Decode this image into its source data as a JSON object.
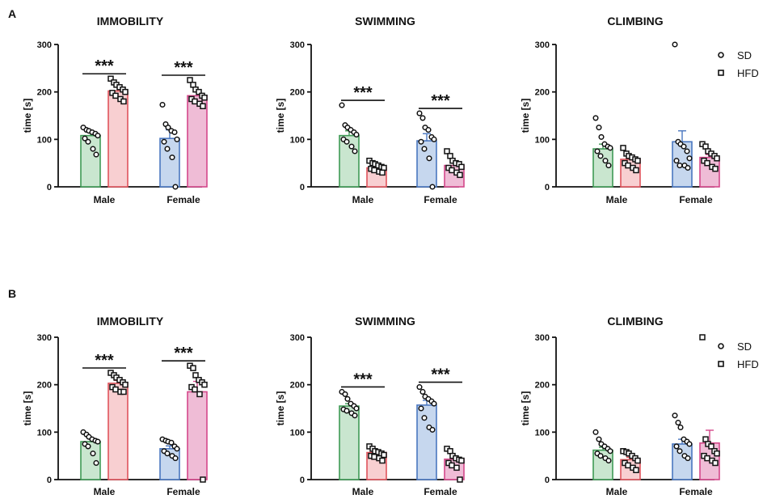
{
  "panels": [
    {
      "label": "A",
      "charts": [
        {
          "type": "bar",
          "title": "IMMOBILITY",
          "ylabel": "time [s]",
          "ylim": [
            0,
            300
          ],
          "yticks": [
            "0",
            "100",
            "200",
            "300"
          ],
          "categories": [
            "Male",
            "Female"
          ],
          "series": [
            {
              "name": "SD",
              "means": [
                108,
                102
              ],
              "errors": [
                8,
                18
              ],
              "points": [
                [
                  125,
                  120,
                  118,
                  115,
                  112,
                  108,
                  102,
                  95,
                  80,
                  68
                ],
                [
                  173,
                  132,
                  125,
                  118,
                  115,
                  100,
                  95,
                  80,
                  62,
                  0
                ]
              ]
            },
            {
              "name": "HFD",
              "means": [
                202,
                192
              ],
              "errors": [
                8,
                10
              ],
              "points": [
                [
                  228,
                  220,
                  215,
                  210,
                  205,
                  200,
                  198,
                  192,
                  185,
                  180
                ],
                [
                  225,
                  215,
                  205,
                  200,
                  192,
                  188,
                  185,
                  180,
                  175,
                  170
                ]
              ]
            }
          ],
          "significance": [
            "***",
            "***"
          ]
        },
        {
          "type": "bar",
          "title": "SWIMMING",
          "ylabel": "time [s]",
          "ylim": [
            0,
            300
          ],
          "yticks": [
            "0",
            "100",
            "200",
            "300"
          ],
          "categories": [
            "Male",
            "Female"
          ],
          "series": [
            {
              "name": "SD",
              "means": [
                108,
                97
              ],
              "errors": [
                10,
                15
              ],
              "points": [
                [
                  172,
                  130,
                  125,
                  120,
                  115,
                  110,
                  100,
                  95,
                  85,
                  75
                ],
                [
                  155,
                  145,
                  125,
                  120,
                  105,
                  100,
                  95,
                  80,
                  60,
                  0
                ]
              ]
            },
            {
              "name": "HFD",
              "means": [
                40,
                45
              ],
              "errors": [
                5,
                6
              ],
              "points": [
                [
                  55,
                  50,
                  48,
                  45,
                  42,
                  40,
                  38,
                  35,
                  32,
                  30
                ],
                [
                  75,
                  65,
                  55,
                  50,
                  48,
                  42,
                  40,
                  35,
                  30,
                  25
                ]
              ]
            }
          ],
          "significance": [
            "***",
            "***"
          ]
        },
        {
          "type": "bar",
          "title": "CLIMBING",
          "ylabel": "time [s]",
          "ylim": [
            0,
            300
          ],
          "yticks": [
            "0",
            "100",
            "200",
            "300"
          ],
          "categories": [
            "Male",
            "Female"
          ],
          "series": [
            {
              "name": "SD",
              "means": [
                80,
                95
              ],
              "errors": [
                10,
                23
              ],
              "points": [
                [
                  145,
                  125,
                  105,
                  90,
                  85,
                  82,
                  75,
                  65,
                  55,
                  45
                ],
                [
                  300,
                  95,
                  90,
                  85,
                  75,
                  60,
                  55,
                  45,
                  45,
                  40
                ]
              ]
            },
            {
              "name": "HFD",
              "means": [
                58,
                62
              ],
              "errors": [
                6,
                6
              ],
              "points": [
                [
                  82,
                  70,
                  65,
                  62,
                  58,
                  55,
                  50,
                  45,
                  40,
                  35
                ],
                [
                  90,
                  85,
                  75,
                  70,
                  65,
                  60,
                  55,
                  50,
                  42,
                  38
                ]
              ]
            }
          ],
          "significance": [
            "",
            ""
          ]
        }
      ]
    },
    {
      "label": "B",
      "charts": [
        {
          "type": "bar",
          "title": "IMMOBILITY",
          "ylabel": "time [s]",
          "ylim": [
            0,
            300
          ],
          "yticks": [
            "0",
            "100",
            "200",
            "300"
          ],
          "categories": [
            "Male",
            "Female"
          ],
          "series": [
            {
              "name": "SD",
              "means": [
                80,
                65
              ],
              "errors": [
                7,
                6
              ],
              "points": [
                [
                  100,
                  95,
                  90,
                  85,
                  82,
                  80,
                  75,
                  70,
                  55,
                  35
                ],
                [
                  85,
                  82,
                  80,
                  78,
                  70,
                  65,
                  60,
                  55,
                  50,
                  45
                ]
              ]
            },
            {
              "name": "HFD",
              "means": [
                203,
                185
              ],
              "errors": [
                6,
                22
              ],
              "points": [
                [
                  225,
                  220,
                  215,
                  210,
                  205,
                  200,
                  195,
                  190,
                  185,
                  185
                ],
                [
                  240,
                  235,
                  220,
                  210,
                  205,
                  200,
                  195,
                  190,
                  180,
                  0
                ]
              ]
            }
          ],
          "significance": [
            "***",
            "***"
          ]
        },
        {
          "type": "bar",
          "title": "SWIMMING",
          "ylabel": "time [s]",
          "ylim": [
            0,
            300
          ],
          "yticks": [
            "0",
            "100",
            "200",
            "300"
          ],
          "categories": [
            "Male",
            "Female"
          ],
          "series": [
            {
              "name": "SD",
              "means": [
                155,
                157
              ],
              "errors": [
                5,
                10
              ],
              "points": [
                [
                  185,
                  180,
                  170,
                  160,
                  155,
                  150,
                  148,
                  145,
                  140,
                  135
                ],
                [
                  195,
                  185,
                  175,
                  170,
                  165,
                  160,
                  150,
                  130,
                  110,
                  105
                ]
              ]
            },
            {
              "name": "HFD",
              "means": [
                57,
                43
              ],
              "errors": [
                5,
                6
              ],
              "points": [
                [
                  70,
                  65,
                  60,
                  58,
                  55,
                  52,
                  50,
                  48,
                  45,
                  40
                ],
                [
                  65,
                  60,
                  50,
                  45,
                  42,
                  40,
                  35,
                  30,
                  25,
                  0
                ]
              ]
            }
          ],
          "significance": [
            "***",
            "***"
          ]
        },
        {
          "type": "bar",
          "title": "CLIMBING",
          "ylabel": "time [s]",
          "ylim": [
            0,
            300
          ],
          "yticks": [
            "0",
            "100",
            "200",
            "300"
          ],
          "categories": [
            "Male",
            "Female"
          ],
          "series": [
            {
              "name": "SD",
              "means": [
                62,
                75
              ],
              "errors": [
                6,
                10
              ],
              "points": [
                [
                  100,
                  85,
                  75,
                  70,
                  65,
                  60,
                  55,
                  50,
                  45,
                  40
                ],
                [
                  135,
                  120,
                  110,
                  85,
                  80,
                  75,
                  70,
                  60,
                  50,
                  45
                ]
              ]
            },
            {
              "name": "HFD",
              "means": [
                42,
                77
              ],
              "errors": [
                5,
                27
              ],
              "points": [
                [
                  60,
                  58,
                  55,
                  50,
                  45,
                  40,
                  35,
                  30,
                  25,
                  20
                ],
                [
                  300,
                  85,
                  75,
                  70,
                  60,
                  55,
                  50,
                  45,
                  40,
                  35
                ]
              ]
            }
          ],
          "significance": [
            "",
            ""
          ]
        }
      ]
    }
  ],
  "legend": {
    "entries": [
      {
        "label": "SD",
        "marker": "circle"
      },
      {
        "label": "HFD",
        "marker": "square"
      }
    ]
  },
  "colors": {
    "male_sd_fill": "#c9e6cf",
    "male_sd_stroke": "#3f9a55",
    "male_hfd_fill": "#f8cfd1",
    "male_hfd_stroke": "#e0545c",
    "female_sd_fill": "#c6d7ee",
    "female_sd_stroke": "#4a77c0",
    "female_hfd_fill": "#efbcd6",
    "female_hfd_stroke": "#d4488a"
  }
}
